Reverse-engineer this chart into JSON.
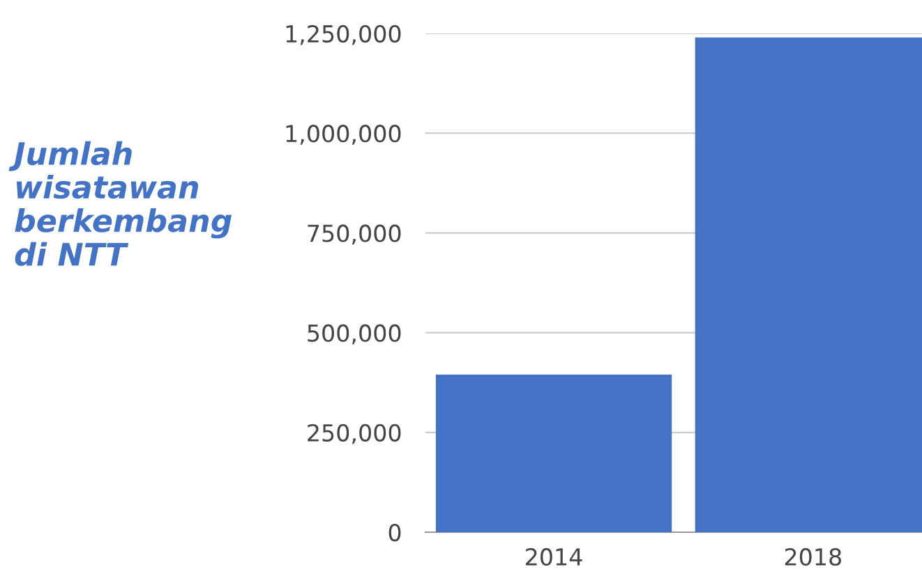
{
  "chart_data": {
    "type": "bar",
    "title": "Jumlah\nwisatawan\nberkembang\ndi NTT",
    "categories": [
      "2014",
      "2018"
    ],
    "values": [
      395000,
      1240000
    ],
    "color": "#4472c4",
    "ylim": [
      0,
      1250000
    ],
    "yticks": [
      {
        "value": 0,
        "label": "0"
      },
      {
        "value": 250000,
        "label": "250,000"
      },
      {
        "value": 500000,
        "label": "500,000"
      },
      {
        "value": 750000,
        "label": "750,000"
      },
      {
        "value": 1000000,
        "label": "1,000,000"
      },
      {
        "value": 1250000,
        "label": "1,250,000"
      }
    ],
    "grid": "y"
  }
}
